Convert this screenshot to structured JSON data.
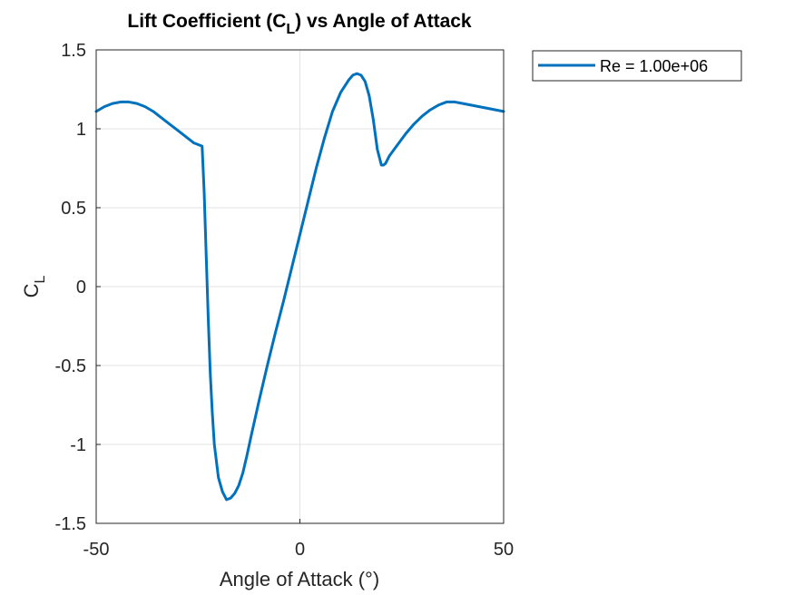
{
  "chart_data": {
    "type": "line",
    "title": {
      "main": "Lift Coefficient (C",
      "sub": "L",
      "tail": ") vs Angle of Attack"
    },
    "xlabel": "Angle of Attack (°)",
    "ylabel": {
      "main": "C",
      "sub": "L"
    },
    "xlim": [
      -50,
      50
    ],
    "ylim": [
      -1.5,
      1.5
    ],
    "xticks": [
      -50,
      0,
      50
    ],
    "xtick_labels": [
      "-50",
      "0",
      "50"
    ],
    "yticks": [
      -1.5,
      -1,
      -0.5,
      0,
      0.5,
      1,
      1.5
    ],
    "ytick_labels": [
      "-1.5",
      "-1",
      "-0.5",
      "0",
      "0.5",
      "1",
      "1.5"
    ],
    "grid": true,
    "legend_position": "outside-top-right",
    "color": "#0072BD",
    "series": [
      {
        "name": "Re = 1.00e+06",
        "x": [
          -50,
          -48,
          -46,
          -44,
          -42,
          -40,
          -38,
          -36,
          -34,
          -32,
          -30,
          -28,
          -26,
          -24,
          -23.5,
          -23,
          -22.5,
          -22,
          -21.5,
          -21,
          -20,
          -19,
          -18,
          -17,
          -16,
          -15,
          -14,
          -13,
          -12,
          -10,
          -8,
          -6,
          -4,
          -2,
          0,
          2,
          4,
          6,
          8,
          10,
          12,
          13,
          14,
          15,
          16,
          17,
          18,
          19,
          20,
          20.5,
          21,
          22,
          24,
          26,
          28,
          30,
          32,
          34,
          36,
          38,
          40,
          42,
          44,
          46,
          48,
          50
        ],
        "y": [
          1.11,
          1.14,
          1.16,
          1.17,
          1.17,
          1.16,
          1.14,
          1.11,
          1.07,
          1.03,
          0.99,
          0.95,
          0.91,
          0.89,
          0.6,
          0.2,
          -0.2,
          -0.55,
          -0.8,
          -1.0,
          -1.21,
          -1.3,
          -1.35,
          -1.34,
          -1.31,
          -1.26,
          -1.18,
          -1.07,
          -0.95,
          -0.72,
          -0.5,
          -0.29,
          -0.09,
          0.12,
          0.33,
          0.54,
          0.75,
          0.94,
          1.11,
          1.23,
          1.31,
          1.34,
          1.35,
          1.34,
          1.3,
          1.21,
          1.06,
          0.87,
          0.77,
          0.77,
          0.78,
          0.83,
          0.9,
          0.97,
          1.03,
          1.08,
          1.12,
          1.15,
          1.17,
          1.17,
          1.16,
          1.15,
          1.14,
          1.13,
          1.12,
          1.11
        ]
      }
    ]
  }
}
